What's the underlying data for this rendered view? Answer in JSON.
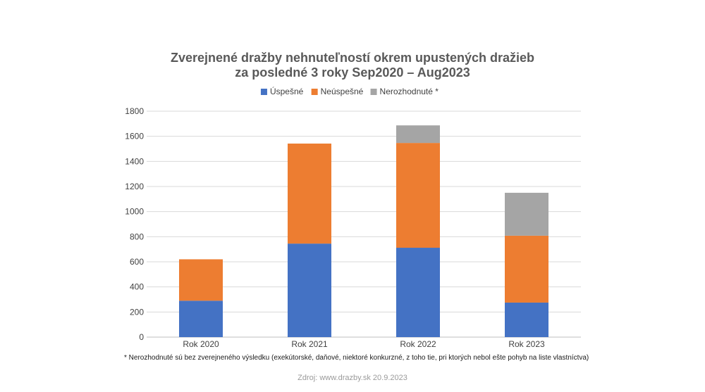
{
  "chart_data": {
    "type": "bar",
    "stacked": true,
    "title_line1": "Zverejnené dražby nehnuteľností okrem upustených dražieb",
    "title_line2": "za posledné 3 roky Sep2020 – Aug2023",
    "categories": [
      "Rok 2020",
      "Rok 2021",
      "Rok 2022",
      "Rok 2023"
    ],
    "series": [
      {
        "name": "Úspešné",
        "color": "#4472C4",
        "values": [
          290,
          745,
          712,
          275
        ]
      },
      {
        "name": "Neúspešné",
        "color": "#ED7D31",
        "values": [
          330,
          797,
          835,
          533
        ]
      },
      {
        "name": "Nerozhodnuté  *",
        "color": "#A5A5A5",
        "values": [
          0,
          0,
          140,
          342
        ]
      }
    ],
    "ylim": [
      0,
      1800
    ],
    "yticks": [
      0,
      200,
      400,
      600,
      800,
      1000,
      1200,
      1400,
      1600,
      1800
    ],
    "grid": true,
    "legend_position": "top"
  },
  "footnote": "* Nerozhodnuté sú bez zverejneného výsledku (exekútorské, daňové, niektoré konkurzné, z toho tie, pri ktorých nebol ešte pohyb na liste vlastníctva)",
  "source": "Zdroj: www.drazby.sk 20.9.2023"
}
